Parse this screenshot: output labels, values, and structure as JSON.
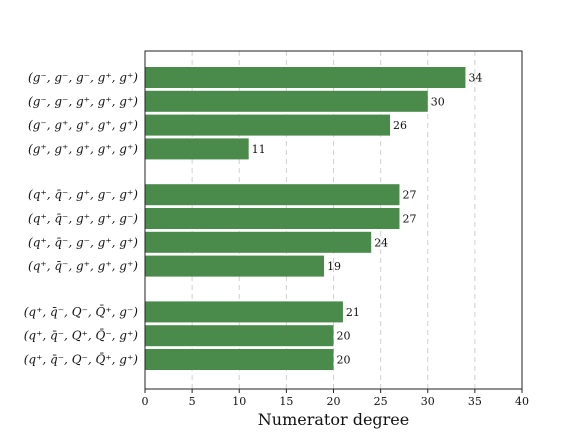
{
  "chart_data": {
    "type": "bar",
    "orientation": "horizontal",
    "title": "",
    "xlabel": "Numerator degree",
    "ylabel": "",
    "xlim": [
      0,
      40
    ],
    "xticks": [
      "0",
      "5",
      "10",
      "15",
      "20",
      "25",
      "30",
      "35",
      "40"
    ],
    "grid": "vertical dashed",
    "bar_color": "#4a8a4a",
    "groups": [
      {
        "categories": [
          "(g⁻, g⁻, g⁻, g⁺, g⁺)",
          "(g⁻, g⁻, g⁺, g⁺, g⁺)",
          "(g⁻, g⁺, g⁺, g⁺, g⁺)",
          "(g⁺, g⁺, g⁺, g⁺, g⁺)"
        ],
        "values": [
          34,
          30,
          26,
          11
        ]
      },
      {
        "categories": [
          "(q⁺, q̄⁻, g⁺, g⁻, g⁺)",
          "(q⁺, q̄⁻, g⁺, g⁺, g⁻)",
          "(q⁺, q̄⁻, g⁻, g⁺, g⁺)",
          "(q⁺, q̄⁻, g⁺, g⁺, g⁺)"
        ],
        "values": [
          27,
          27,
          24,
          19
        ]
      },
      {
        "categories": [
          "(q⁺, q̄⁻, Q⁻, Q̄⁺, g⁻)",
          "(q⁺, q̄⁻, Q⁺, Q̄⁻, g⁺)",
          "(q⁺, q̄⁻, Q⁻, Q̄⁺, g⁺)"
        ],
        "values": [
          21,
          20,
          20
        ]
      }
    ]
  }
}
